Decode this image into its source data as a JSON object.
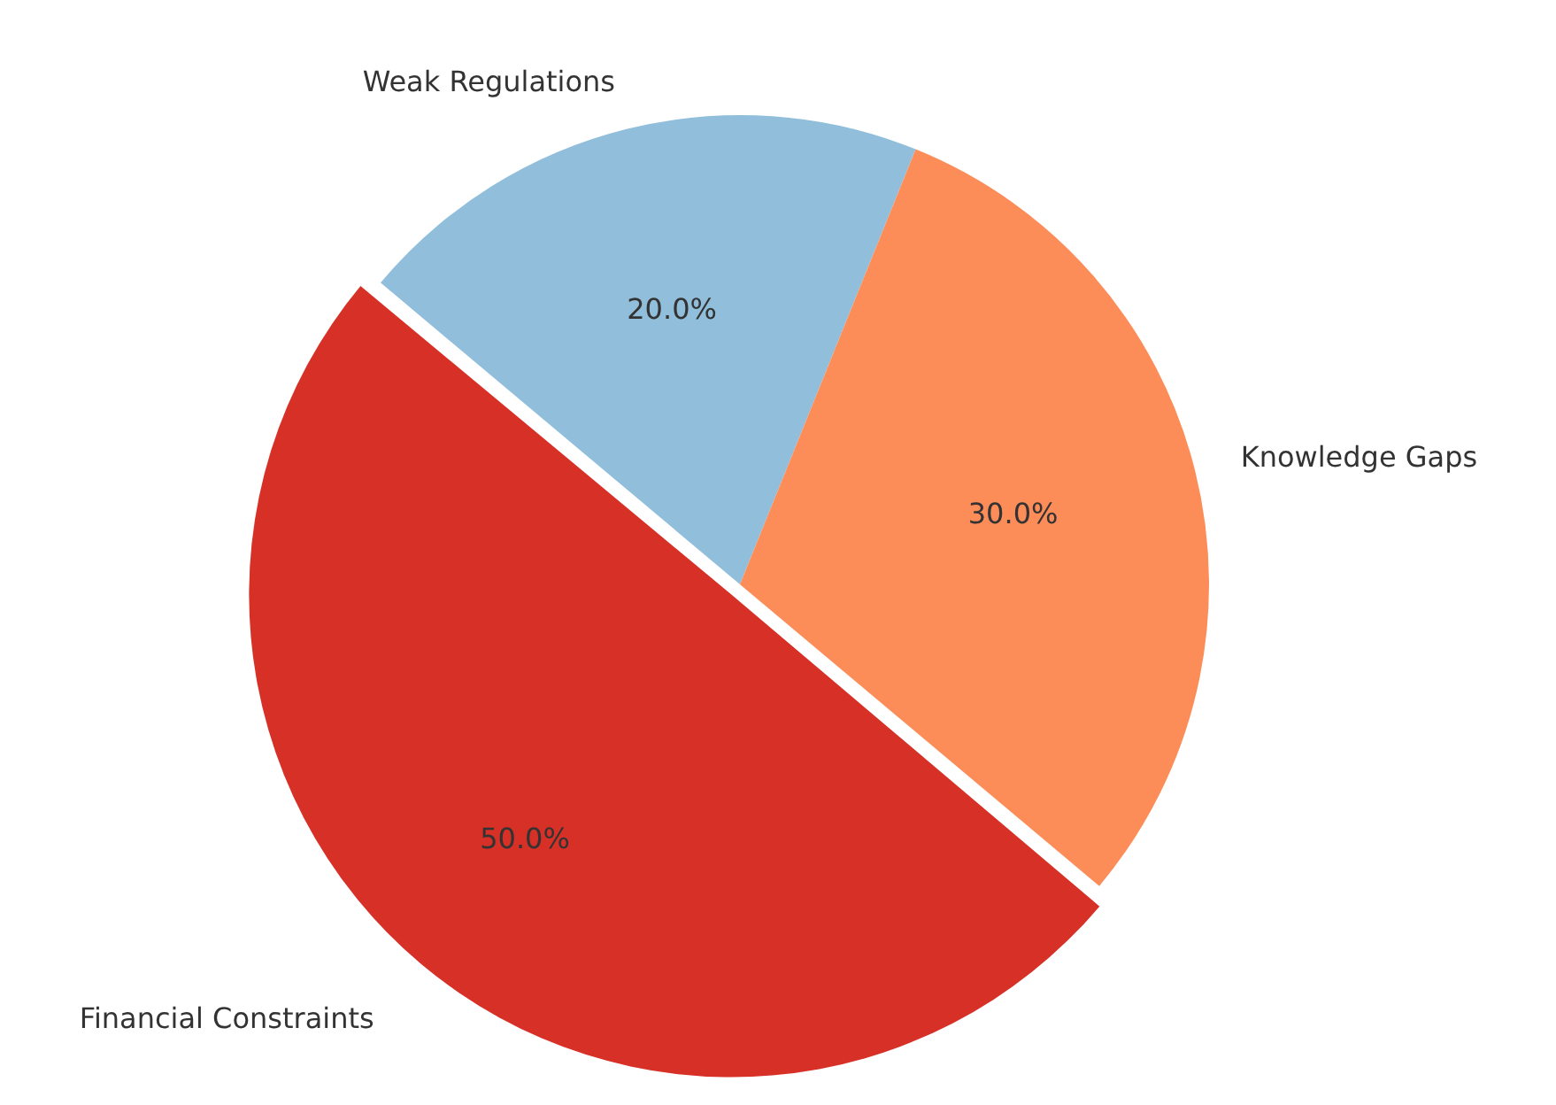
{
  "chart_data": {
    "type": "pie",
    "categories": [
      "Weak Regulations",
      "Knowledge Gaps",
      "Financial Constraints"
    ],
    "values": [
      20,
      30,
      50
    ],
    "colors": [
      "#91bfdb",
      "#fc8d59",
      "#d73027"
    ],
    "value_labels": [
      "20.0%",
      "30.0%",
      "50.0%"
    ],
    "legend": false
  }
}
